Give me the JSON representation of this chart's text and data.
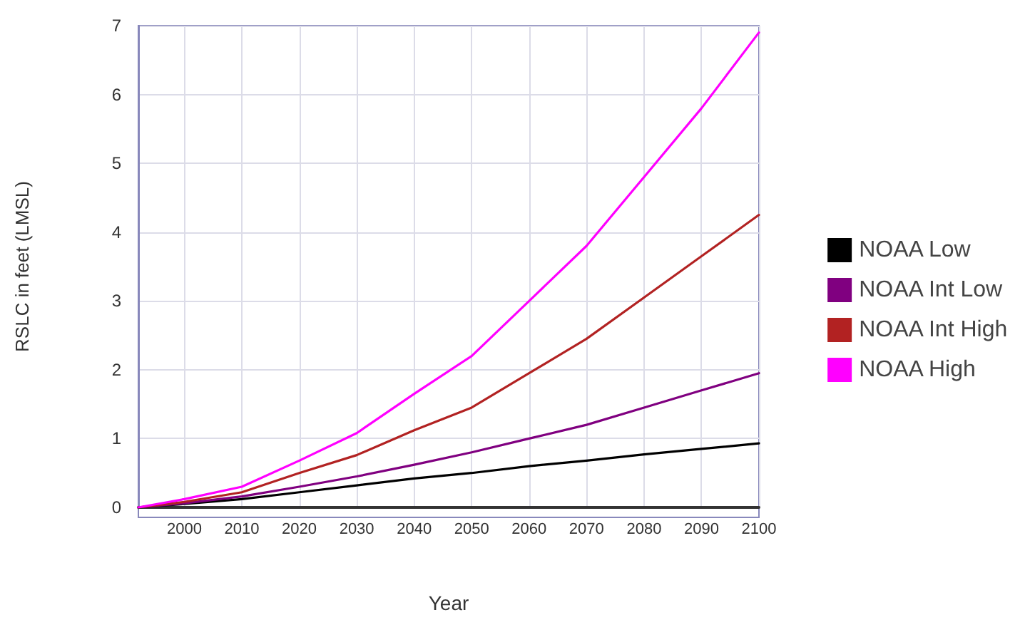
{
  "chart_data": {
    "type": "line",
    "xlabel": "Year",
    "ylabel": "RSLC in feet (LMSL)",
    "x": [
      1992,
      2000,
      2010,
      2020,
      2030,
      2040,
      2050,
      2060,
      2070,
      2080,
      2090,
      2100
    ],
    "series": [
      {
        "name": "NOAA Low",
        "color": "#000000",
        "values": [
          0,
          0.05,
          0.12,
          0.22,
          0.32,
          0.42,
          0.5,
          0.6,
          0.68,
          0.77,
          0.85,
          0.93
        ]
      },
      {
        "name": "NOAA Int Low",
        "color": "#800080",
        "values": [
          0,
          0.06,
          0.16,
          0.3,
          0.45,
          0.62,
          0.8,
          1.0,
          1.2,
          1.45,
          1.7,
          1.95
        ]
      },
      {
        "name": "NOAA Int High",
        "color": "#b22222",
        "values": [
          0,
          0.08,
          0.22,
          0.5,
          0.76,
          1.12,
          1.45,
          1.95,
          2.45,
          3.05,
          3.65,
          4.25
        ]
      },
      {
        "name": "NOAA High",
        "color": "#ff00ff",
        "values": [
          0,
          0.12,
          0.3,
          0.68,
          1.08,
          1.65,
          2.2,
          3.0,
          3.8,
          4.8,
          5.8,
          6.9
        ]
      }
    ],
    "xlim": [
      1992,
      2100
    ],
    "xticks": [
      2000,
      2010,
      2020,
      2030,
      2040,
      2050,
      2060,
      2070,
      2080,
      2090,
      2100
    ],
    "ylim": [
      0,
      7
    ],
    "yticks": [
      0,
      1,
      2,
      3,
      4,
      5,
      6,
      7
    ],
    "grid": true,
    "legend": "right",
    "marker": "none",
    "line_style": "solid"
  }
}
